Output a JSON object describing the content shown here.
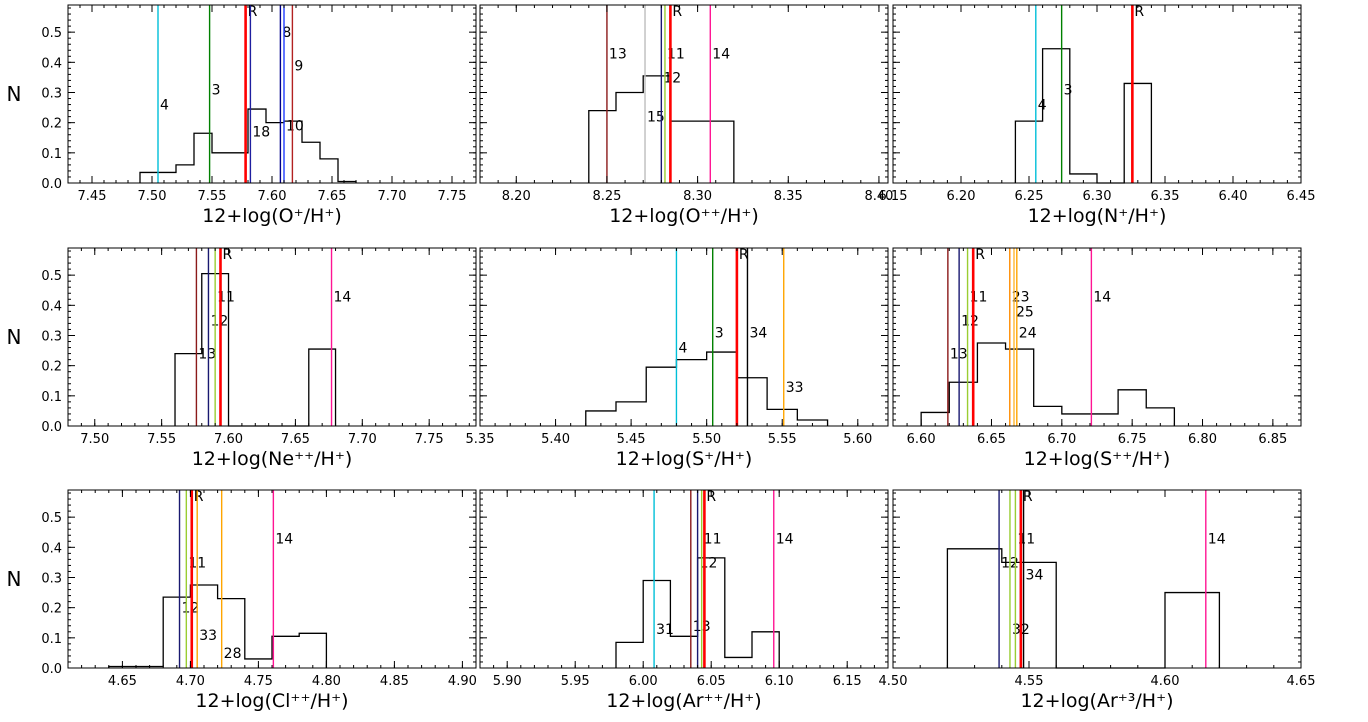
{
  "figure": {
    "ylabel": "N",
    "frame_color": "#000000",
    "histogram_color": "#000000"
  },
  "line_colors": {
    "R": "#ff0000",
    "3": "#008000",
    "4": "#00bfd8",
    "8": "#00008b",
    "9": "#b22222",
    "10": "#1e3cff",
    "11": "#9acd32",
    "12": "#191970",
    "13": "#8b1a1a",
    "14": "#ff1493",
    "15": "#bebebe",
    "18": "#1f1f9f",
    "23": "#ff8c00",
    "24": "#ffa500",
    "25": "#ffb732",
    "28": "#ffa500",
    "31": "#00bfd8",
    "32": "#9acd32",
    "33": "#ffa500",
    "34": "#000000"
  },
  "chart_data": [
    {
      "type": "histogram",
      "xlabel": "12+log(O⁺/H⁺)",
      "ylabel": "N",
      "xlim": [
        7.43,
        7.77
      ],
      "ylim": [
        0,
        0.59
      ],
      "xticks": [
        "7.45",
        "7.50",
        "7.55",
        "7.60",
        "7.65",
        "7.70",
        "7.75"
      ],
      "yticks": [
        "0.0",
        "0.1",
        "0.2",
        "0.3",
        "0.4",
        "0.5"
      ],
      "bins": [
        7.49,
        7.505,
        7.52,
        7.535,
        7.55,
        7.565,
        7.58,
        7.595,
        7.61,
        7.625,
        7.64,
        7.655,
        7.67
      ],
      "counts": [
        0.035,
        0.035,
        0.06,
        0.165,
        0.1,
        0.1,
        0.245,
        0.2,
        0.205,
        0.135,
        0.08,
        0.005
      ],
      "lines": [
        {
          "id": "4",
          "x": 7.505,
          "label": "4",
          "label_y": 0.26
        },
        {
          "id": "3",
          "x": 7.548,
          "label": "3",
          "label_y": 0.31
        },
        {
          "id": "R",
          "x": 7.578,
          "label": "R",
          "label_y": 0.57,
          "bold": true
        },
        {
          "id": "18",
          "x": 7.582,
          "label": "18",
          "label_y": 0.17
        },
        {
          "id": "8",
          "x": 7.607,
          "label": "8",
          "label_y": 0.5
        },
        {
          "id": "10",
          "x": 7.61,
          "label": "10",
          "label_y": 0.19
        },
        {
          "id": "9",
          "x": 7.617,
          "label": "9",
          "label_y": 0.39
        }
      ]
    },
    {
      "type": "histogram",
      "xlabel": "12+log(O⁺⁺/H⁺)",
      "ylabel": "",
      "xlim": [
        8.18,
        8.405
      ],
      "ylim": [
        0,
        0.59
      ],
      "xticks": [
        "8.20",
        "8.25",
        "8.30",
        "8.35",
        "8.40"
      ],
      "yticks": [],
      "bins": [
        8.24,
        8.255,
        8.27,
        8.285,
        8.3,
        8.32
      ],
      "counts": [
        0.24,
        0.3,
        0.355,
        0.205,
        0.205
      ],
      "lines": [
        {
          "id": "13",
          "x": 8.25,
          "label": "13",
          "label_y": 0.43
        },
        {
          "id": "15",
          "x": 8.271,
          "label": "15",
          "label_y": 0.22
        },
        {
          "id": "12",
          "x": 8.28,
          "label": "12",
          "label_y": 0.35
        },
        {
          "id": "11",
          "x": 8.282,
          "label": "11",
          "label_y": 0.43
        },
        {
          "id": "R",
          "x": 8.285,
          "label": "R",
          "label_y": 0.57,
          "bold": true
        },
        {
          "id": "14",
          "x": 8.307,
          "label": "14",
          "label_y": 0.43
        }
      ]
    },
    {
      "type": "histogram",
      "xlabel": "12+log(N⁺/H⁺)",
      "ylabel": "",
      "xlim": [
        6.15,
        6.45
      ],
      "ylim": [
        0,
        0.59
      ],
      "xticks": [
        "6.15",
        "6.20",
        "6.25",
        "6.30",
        "6.35",
        "6.40",
        "6.45"
      ],
      "yticks": [],
      "bins": [
        6.24,
        6.26,
        6.28,
        6.3,
        6.32,
        6.34
      ],
      "counts": [
        0.205,
        0.445,
        0.03,
        0.0,
        0.33
      ],
      "lines": [
        {
          "id": "4",
          "x": 6.255,
          "label": "4",
          "label_y": 0.26
        },
        {
          "id": "3",
          "x": 6.274,
          "label": "3",
          "label_y": 0.31
        },
        {
          "id": "R",
          "x": 6.326,
          "label": "R",
          "label_y": 0.57,
          "bold": true
        }
      ]
    },
    {
      "type": "histogram",
      "xlabel": "12+log(Ne⁺⁺/H⁺)",
      "ylabel": "N",
      "xlim": [
        7.48,
        7.785
      ],
      "ylim": [
        0,
        0.59
      ],
      "xticks": [
        "7.50",
        "7.55",
        "7.60",
        "7.65",
        "7.70",
        "7.75"
      ],
      "yticks": [
        "0.0",
        "0.1",
        "0.2",
        "0.3",
        "0.4",
        "0.5"
      ],
      "bins": [
        7.56,
        7.58,
        7.6,
        7.62,
        7.64,
        7.66,
        7.68
      ],
      "counts": [
        0.24,
        0.505,
        0.0,
        0.0,
        0.0,
        0.255
      ],
      "lines": [
        {
          "id": "13",
          "x": 7.576,
          "label": "13",
          "label_y": 0.24
        },
        {
          "id": "12",
          "x": 7.585,
          "label": "12",
          "label_y": 0.35
        },
        {
          "id": "11",
          "x": 7.59,
          "label": "11",
          "label_y": 0.43
        },
        {
          "id": "R",
          "x": 7.594,
          "label": "R",
          "label_y": 0.57,
          "bold": true
        },
        {
          "id": "14",
          "x": 7.677,
          "label": "14",
          "label_y": 0.43
        }
      ]
    },
    {
      "type": "histogram",
      "xlabel": "12+log(S⁺/H⁺)",
      "ylabel": "",
      "xlim": [
        5.35,
        5.62
      ],
      "ylim": [
        0,
        0.59
      ],
      "xticks": [
        "5.35",
        "5.40",
        "5.45",
        "5.50",
        "5.55",
        "5.60"
      ],
      "yticks": [],
      "bins": [
        5.42,
        5.44,
        5.46,
        5.48,
        5.5,
        5.52,
        5.54,
        5.56,
        5.58
      ],
      "counts": [
        0.05,
        0.08,
        0.195,
        0.22,
        0.245,
        0.16,
        0.055,
        0.02
      ],
      "lines": [
        {
          "id": "4",
          "x": 5.48,
          "label": "4",
          "label_y": 0.26
        },
        {
          "id": "3",
          "x": 5.504,
          "label": "3",
          "label_y": 0.31
        },
        {
          "id": "R",
          "x": 5.52,
          "label": "R",
          "label_y": 0.57,
          "bold": true
        },
        {
          "id": "34",
          "x": 5.527,
          "label": "34",
          "label_y": 0.31
        },
        {
          "id": "33",
          "x": 5.551,
          "label": "33",
          "label_y": 0.13
        }
      ]
    },
    {
      "type": "histogram",
      "xlabel": "12+log(S⁺⁺/H⁺)",
      "ylabel": "",
      "xlim": [
        6.58,
        6.87
      ],
      "ylim": [
        0,
        0.59
      ],
      "xticks": [
        "6.60",
        "6.65",
        "6.70",
        "6.75",
        "6.80",
        "6.85"
      ],
      "yticks": [],
      "bins": [
        6.6,
        6.62,
        6.64,
        6.66,
        6.68,
        6.7,
        6.72,
        6.74,
        6.76,
        6.78
      ],
      "counts": [
        0.045,
        0.145,
        0.275,
        0.255,
        0.065,
        0.04,
        0.04,
        0.12,
        0.06
      ],
      "lines": [
        {
          "id": "13",
          "x": 6.619,
          "label": "13",
          "label_y": 0.24
        },
        {
          "id": "12",
          "x": 6.627,
          "label": "12",
          "label_y": 0.35
        },
        {
          "id": "11",
          "x": 6.633,
          "label": "11",
          "label_y": 0.43
        },
        {
          "id": "R",
          "x": 6.637,
          "label": "R",
          "label_y": 0.57,
          "bold": true
        },
        {
          "id": "23",
          "x": 6.663,
          "label": "23",
          "label_y": 0.43
        },
        {
          "id": "25",
          "x": 6.666,
          "label": "25",
          "label_y": 0.38
        },
        {
          "id": "24",
          "x": 6.668,
          "label": "24",
          "label_y": 0.31
        },
        {
          "id": "14",
          "x": 6.721,
          "label": "14",
          "label_y": 0.43
        }
      ]
    },
    {
      "type": "histogram",
      "xlabel": "12+log(Cl⁺⁺/H⁺)",
      "ylabel": "N",
      "xlim": [
        4.61,
        4.91
      ],
      "ylim": [
        0,
        0.59
      ],
      "xticks": [
        "4.65",
        "4.70",
        "4.75",
        "4.80",
        "4.85",
        "4.90"
      ],
      "yticks": [
        "0.0",
        "0.1",
        "0.2",
        "0.3",
        "0.4",
        "0.5"
      ],
      "bins": [
        4.64,
        4.66,
        4.68,
        4.7,
        4.72,
        4.74,
        4.76,
        4.78,
        4.8
      ],
      "counts": [
        0.005,
        0.005,
        0.235,
        0.275,
        0.23,
        0.03,
        0.105,
        0.115
      ],
      "lines": [
        {
          "id": "12",
          "x": 4.692,
          "label": "12",
          "label_y": 0.2
        },
        {
          "id": "11",
          "x": 4.697,
          "label": "11",
          "label_y": 0.35
        },
        {
          "id": "R",
          "x": 4.701,
          "label": "R",
          "label_y": 0.57,
          "bold": true
        },
        {
          "id": "33",
          "x": 4.705,
          "label": "33",
          "label_y": 0.11
        },
        {
          "id": "28",
          "x": 4.723,
          "label": "28",
          "label_y": 0.05
        },
        {
          "id": "14",
          "x": 4.761,
          "label": "14",
          "label_y": 0.43
        }
      ]
    },
    {
      "type": "histogram",
      "xlabel": "12+log(Ar⁺⁺/H⁺)",
      "ylabel": "",
      "xlim": [
        5.88,
        6.18
      ],
      "ylim": [
        0,
        0.59
      ],
      "xticks": [
        "5.90",
        "5.95",
        "6.00",
        "6.05",
        "6.10",
        "6.15"
      ],
      "yticks": [],
      "bins": [
        5.98,
        6.0,
        6.02,
        6.04,
        6.06,
        6.08,
        6.1
      ],
      "counts": [
        0.085,
        0.29,
        0.105,
        0.365,
        0.035,
        0.12
      ],
      "lines": [
        {
          "id": "31",
          "x": 6.008,
          "label": "31",
          "label_y": 0.13
        },
        {
          "id": "13",
          "x": 6.035,
          "label": "13",
          "label_y": 0.14
        },
        {
          "id": "12",
          "x": 6.04,
          "label": "12",
          "label_y": 0.35
        },
        {
          "id": "11",
          "x": 6.043,
          "label": "11",
          "label_y": 0.43
        },
        {
          "id": "R",
          "x": 6.045,
          "label": "R",
          "label_y": 0.57,
          "bold": true
        },
        {
          "id": "14",
          "x": 6.096,
          "label": "14",
          "label_y": 0.43
        }
      ]
    },
    {
      "type": "histogram",
      "xlabel": "12+log(Ar⁺³/H⁺)",
      "ylabel": "",
      "xlim": [
        4.5,
        4.65
      ],
      "ylim": [
        0,
        0.59
      ],
      "xticks": [
        "4.50",
        "4.55",
        "4.60",
        "4.65"
      ],
      "yticks": [],
      "bins": [
        4.52,
        4.54,
        4.56,
        4.58,
        4.6,
        4.62
      ],
      "counts": [
        0.395,
        0.35,
        0.0,
        0.0,
        0.25
      ],
      "lines": [
        {
          "id": "12",
          "x": 4.539,
          "label": "12",
          "label_y": 0.35
        },
        {
          "id": "32",
          "x": 4.543,
          "label": "32",
          "label_y": 0.13
        },
        {
          "id": "11",
          "x": 4.545,
          "label": "11",
          "label_y": 0.43
        },
        {
          "id": "R",
          "x": 4.547,
          "label": "R",
          "label_y": 0.57,
          "bold": true
        },
        {
          "id": "34",
          "x": 4.548,
          "label": "34",
          "label_y": 0.31
        },
        {
          "id": "14",
          "x": 4.615,
          "label": "14",
          "label_y": 0.43
        }
      ]
    }
  ]
}
